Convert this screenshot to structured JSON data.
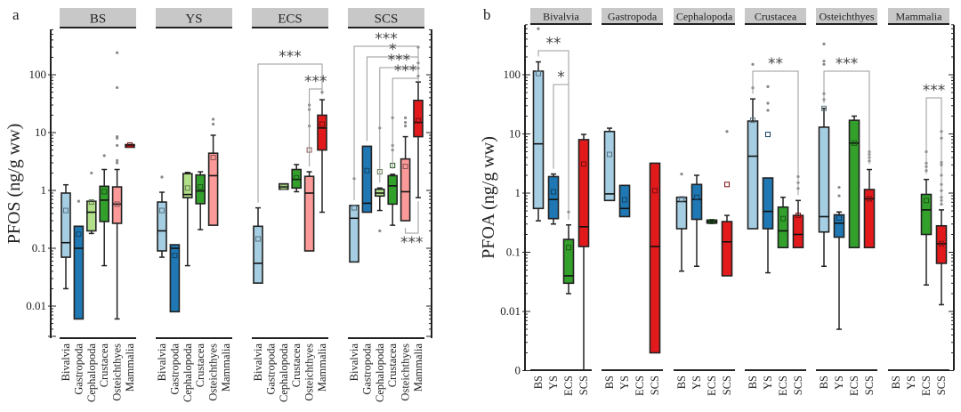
{
  "chart_data": [
    {
      "type": "box",
      "panel_label": "a",
      "ylabel": "PFOS (ng/g ww)",
      "yscale": "log",
      "ylim": [
        0.003,
        600
      ],
      "yticks": [
        {
          "value": 100,
          "label": "100"
        },
        {
          "value": 10,
          "label": "10"
        },
        {
          "value": 1,
          "label": "1"
        },
        {
          "value": 0.1,
          "label": "0.1"
        },
        {
          "value": 0.01,
          "label": "0.01"
        }
      ],
      "facets": [
        "BS",
        "YS",
        "ECS",
        "SCS"
      ],
      "categories": [
        "Bivalvia",
        "Gastropoda",
        "Cephalopoda",
        "Crustacea",
        "Osteichthyes",
        "Mammalia"
      ],
      "colors": {
        "Bivalvia": "#a6cee3",
        "Gastropoda": "#1f78b4",
        "Cephalopoda": "#b2df8a",
        "Crustacea": "#33a02c",
        "Osteichthyes": "#fb9a99",
        "Mammalia": "#e31a1c"
      },
      "groups": [
        {
          "facet": "BS",
          "category": "Bivalvia",
          "wlo": 0.02,
          "q1": 0.07,
          "median": 0.125,
          "q3": 0.9,
          "whi": 1.25,
          "mean": 0.45,
          "outliers": []
        },
        {
          "facet": "BS",
          "category": "Gastropoda",
          "wlo": 0.006,
          "q1": 0.006,
          "median": 0.1,
          "q3": 0.24,
          "whi": 0.24,
          "mean": 0.175,
          "outliers": [
            0.65
          ]
        },
        {
          "facet": "BS",
          "category": "Cephalopoda",
          "wlo": 0.18,
          "q1": 0.2,
          "median": 0.42,
          "q3": 0.65,
          "whi": 0.65,
          "mean": 0.63,
          "outliers": [
            2.0
          ]
        },
        {
          "facet": "BS",
          "category": "Crustacea",
          "wlo": 0.05,
          "q1": 0.29,
          "median": 0.68,
          "q3": 1.18,
          "whi": 2.3,
          "mean": 0.95,
          "outliers": [
            4.0
          ]
        },
        {
          "facet": "BS",
          "category": "Osteichthyes",
          "wlo": 0.006,
          "q1": 0.27,
          "median": 0.58,
          "q3": 1.15,
          "whi": 2.3,
          "mean": 0.58,
          "outliers": [
            3.0,
            3.3,
            6.0,
            8.0,
            8.5,
            60,
            240
          ]
        },
        {
          "facet": "BS",
          "category": "Mammalia",
          "wlo": 6.0,
          "q1": 6.0,
          "median": 6.1,
          "q3": 6.2,
          "whi": 6.2,
          "mean": 6.1,
          "outliers": []
        },
        {
          "facet": "YS",
          "category": "Bivalvia",
          "wlo": 0.07,
          "q1": 0.09,
          "median": 0.2,
          "q3": 0.63,
          "whi": 0.93,
          "mean": 0.45,
          "outliers": [
            1.7
          ]
        },
        {
          "facet": "YS",
          "category": "Gastropoda",
          "wlo": 0.008,
          "q1": 0.008,
          "median": 0.1,
          "q3": 0.115,
          "whi": 0.115,
          "mean": 0.075,
          "outliers": []
        },
        {
          "facet": "YS",
          "category": "Cephalopoda",
          "wlo": 0.05,
          "q1": 0.75,
          "median": 0.85,
          "q3": 1.95,
          "whi": 2.05,
          "mean": 1.1,
          "outliers": []
        },
        {
          "facet": "YS",
          "category": "Crustacea",
          "wlo": 0.21,
          "q1": 0.59,
          "median": 0.98,
          "q3": 1.85,
          "whi": 2.1,
          "mean": 1.15,
          "outliers": []
        },
        {
          "facet": "YS",
          "category": "Osteichthyes",
          "wlo": 0.25,
          "q1": 0.25,
          "median": 1.8,
          "q3": 4.4,
          "whi": 9.0,
          "mean": 3.7,
          "outliers": [
            14,
            17
          ]
        },
        {
          "facet": "ECS",
          "category": "Bivalvia",
          "wlo": 0.025,
          "q1": 0.025,
          "median": 0.055,
          "q3": 0.24,
          "whi": 0.5,
          "mean": 0.145,
          "outliers": []
        },
        {
          "facet": "ECS",
          "category": "Cephalopoda",
          "wlo": 1.05,
          "q1": 1.05,
          "median": 1.15,
          "q3": 1.3,
          "whi": 1.3,
          "mean": 1.15,
          "outliers": []
        },
        {
          "facet": "ECS",
          "category": "Crustacea",
          "wlo": 0.95,
          "q1": 1.1,
          "median": 1.55,
          "q3": 2.3,
          "whi": 2.8,
          "mean": 1.65,
          "outliers": []
        },
        {
          "facet": "ECS",
          "category": "Osteichthyes",
          "wlo": 0.09,
          "q1": 0.09,
          "median": 0.9,
          "q3": 1.75,
          "whi": 2.1,
          "mean": 5.0,
          "outliers": [
            13,
            25,
            30
          ]
        },
        {
          "facet": "ECS",
          "category": "Mammalia",
          "wlo": 0.42,
          "q1": 5.0,
          "median": 12,
          "q3": 20,
          "whi": 37,
          "mean": 14,
          "outliers": [
            50
          ]
        },
        {
          "facet": "SCS",
          "category": "Bivalvia",
          "wlo": 0.058,
          "q1": 0.058,
          "median": 0.33,
          "q3": 0.55,
          "whi": 0.55,
          "mean": 0.5,
          "outliers": [
            1.6
          ]
        },
        {
          "facet": "SCS",
          "category": "Gastropoda",
          "wlo": 0.42,
          "q1": 0.42,
          "median": 0.6,
          "q3": 5.8,
          "whi": 5.8,
          "mean": 2.2,
          "outliers": []
        },
        {
          "facet": "SCS",
          "category": "Cephalopoda",
          "wlo": 0.45,
          "q1": 0.8,
          "median": 0.9,
          "q3": 1.05,
          "whi": 1.1,
          "mean": 2.1,
          "outliers": [
            0.2,
            12
          ]
        },
        {
          "facet": "SCS",
          "category": "Crustacea",
          "wlo": 0.25,
          "q1": 0.58,
          "median": 1.2,
          "q3": 1.8,
          "whi": 1.9,
          "mean": 2.7,
          "outliers": [
            5,
            6,
            18
          ]
        },
        {
          "facet": "SCS",
          "category": "Osteichthyes",
          "wlo": 0.3,
          "q1": 0.3,
          "median": 0.95,
          "q3": 3.5,
          "whi": 8.5,
          "mean": 2.6,
          "outliers": [
            13,
            15,
            18
          ]
        },
        {
          "facet": "SCS",
          "category": "Mammalia",
          "wlo": 0.75,
          "q1": 8.5,
          "median": 15,
          "q3": 36,
          "whi": 75,
          "mean": 16,
          "outliers": [
            95,
            130,
            160,
            300
          ]
        }
      ],
      "significance": [
        {
          "facet": "ECS",
          "from": "Bivalvia",
          "to": "Mammalia",
          "label": "***",
          "level": 1
        },
        {
          "facet": "ECS",
          "from": "Osteichthyes",
          "to": "Mammalia",
          "label": "***",
          "level": 2
        },
        {
          "facet": "SCS",
          "from": "Bivalvia",
          "to": "Mammalia",
          "label": "***",
          "level": 1
        },
        {
          "facet": "SCS",
          "from": "Gastropoda",
          "to": "Mammalia",
          "label": "*",
          "level": 2
        },
        {
          "facet": "SCS",
          "from": "Cephalopoda",
          "to": "Mammalia",
          "label": "***",
          "level": 3
        },
        {
          "facet": "SCS",
          "from": "Crustacea",
          "to": "Mammalia",
          "label": "***",
          "level": 4
        },
        {
          "facet": "SCS",
          "from": "Osteichthyes",
          "to": "Mammalia",
          "label": "***",
          "level": "below"
        }
      ]
    },
    {
      "type": "box",
      "panel_label": "b",
      "ylabel": "PFOA (ng/g ww)",
      "yscale": "log",
      "ylim": [
        0.001,
        600
      ],
      "yticks": [
        {
          "value": 100,
          "label": "100"
        },
        {
          "value": 10,
          "label": "10"
        },
        {
          "value": 1,
          "label": "1"
        },
        {
          "value": 0.1,
          "label": "0.1"
        },
        {
          "value": 0.01,
          "label": "0.01"
        },
        {
          "value": 0.001,
          "label": "0"
        }
      ],
      "facets": [
        "Bivalvia",
        "Gastropoda",
        "Cephalopoda",
        "Crustacea",
        "Osteichthyes",
        "Mammalia"
      ],
      "categories": [
        "BS",
        "YS",
        "ECS",
        "SCS"
      ],
      "colors": {
        "BS": "#a6cee3",
        "YS": "#1f78b4",
        "ECS": "#33a02c",
        "SCS": "#e31a1c"
      },
      "groups": [
        {
          "facet": "Bivalvia",
          "category": "BS",
          "wlo": 0.34,
          "q1": 0.55,
          "median": 6.8,
          "q3": 115,
          "whi": 165,
          "mean": 105,
          "outliers": [
            600
          ]
        },
        {
          "facet": "Bivalvia",
          "category": "YS",
          "wlo": 0.3,
          "q1": 0.37,
          "median": 0.78,
          "q3": 1.9,
          "whi": 2.1,
          "mean": 1.05,
          "outliers": []
        },
        {
          "facet": "Bivalvia",
          "category": "ECS",
          "wlo": 0.02,
          "q1": 0.03,
          "median": 0.04,
          "q3": 0.165,
          "whi": 0.29,
          "mean": 0.12,
          "outliers": [
            0.48
          ]
        },
        {
          "facet": "Bivalvia",
          "category": "SCS",
          "wlo": 0.001,
          "q1": 0.125,
          "median": 0.27,
          "q3": 8.0,
          "whi": 9.8,
          "mean": 3.1,
          "outliers": []
        },
        {
          "facet": "Gastropoda",
          "category": "BS",
          "wlo": 0.75,
          "q1": 0.75,
          "median": 0.97,
          "q3": 11,
          "whi": 12.5,
          "mean": 4.5,
          "outliers": []
        },
        {
          "facet": "Gastropoda",
          "category": "YS",
          "wlo": 0.4,
          "q1": 0.4,
          "median": 0.55,
          "q3": 1.35,
          "whi": 1.35,
          "mean": 0.77,
          "outliers": []
        },
        {
          "facet": "Gastropoda",
          "category": "SCS",
          "wlo": 0.002,
          "q1": 0.002,
          "median": 0.125,
          "q3": 3.2,
          "whi": 3.2,
          "mean": 1.1,
          "outliers": []
        },
        {
          "facet": "Cephalopoda",
          "category": "BS",
          "wlo": 0.048,
          "q1": 0.25,
          "median": 0.72,
          "q3": 0.85,
          "whi": 0.85,
          "mean": 0.8,
          "outliers": [
            2.1
          ]
        },
        {
          "facet": "Cephalopoda",
          "category": "YS",
          "wlo": 0.058,
          "q1": 0.36,
          "median": 0.78,
          "q3": 1.4,
          "whi": 2.0,
          "mean": 0.85,
          "outliers": []
        },
        {
          "facet": "Cephalopoda",
          "category": "ECS",
          "wlo": 0.31,
          "q1": 0.31,
          "median": 0.33,
          "q3": 0.35,
          "whi": 0.35,
          "mean": 0.33,
          "outliers": []
        },
        {
          "facet": "Cephalopoda",
          "category": "SCS",
          "wlo": 0.04,
          "q1": 0.04,
          "median": 0.15,
          "q3": 0.33,
          "whi": 0.42,
          "mean": 1.4,
          "outliers": [
            11
          ]
        },
        {
          "facet": "Crustacea",
          "category": "BS",
          "wlo": 0.25,
          "q1": 0.25,
          "median": 4.2,
          "q3": 16.5,
          "whi": 39,
          "mean": 17,
          "outliers": [
            60,
            150
          ]
        },
        {
          "facet": "Crustacea",
          "category": "YS",
          "wlo": 0.045,
          "q1": 0.25,
          "median": 0.49,
          "q3": 1.8,
          "whi": 1.8,
          "mean": 9.8,
          "outliers": [
            25,
            33,
            63
          ]
        },
        {
          "facet": "Crustacea",
          "category": "ECS",
          "wlo": 0.12,
          "q1": 0.12,
          "median": 0.23,
          "q3": 0.58,
          "whi": 0.85,
          "mean": 0.37,
          "outliers": []
        },
        {
          "facet": "Crustacea",
          "category": "SCS",
          "wlo": 0.12,
          "q1": 0.12,
          "median": 0.2,
          "q3": 0.42,
          "whi": 0.75,
          "mean": 0.42,
          "outliers": [
            1.2,
            1.5,
            1.9
          ]
        },
        {
          "facet": "Osteichthyes",
          "category": "BS",
          "wlo": 0.058,
          "q1": 0.22,
          "median": 0.4,
          "q3": 13,
          "whi": 27,
          "mean": 27,
          "outliers": [
            38,
            48,
            150,
            170,
            330
          ]
        },
        {
          "facet": "Osteichthyes",
          "category": "YS",
          "wlo": 0.005,
          "q1": 0.18,
          "median": 0.31,
          "q3": 0.43,
          "whi": 0.48,
          "mean": 0.38,
          "outliers": [
            0.9,
            1.25
          ]
        },
        {
          "facet": "Osteichthyes",
          "category": "ECS",
          "wlo": 0.12,
          "q1": 0.12,
          "median": 7.0,
          "q3": 17,
          "whi": 20,
          "mean": 7.0,
          "outliers": []
        },
        {
          "facet": "Osteichthyes",
          "category": "SCS",
          "wlo": 0.12,
          "q1": 0.12,
          "median": 0.8,
          "q3": 1.15,
          "whi": 2.5,
          "mean": 0.8,
          "outliers": [
            3.5,
            4.0,
            4.5,
            5.0
          ]
        },
        {
          "facet": "Mammalia",
          "category": "ECS",
          "wlo": 0.028,
          "q1": 0.2,
          "median": 0.52,
          "q3": 0.95,
          "whi": 1.7,
          "mean": 0.75,
          "outliers": [
            2.4,
            2.8,
            3.2,
            5.0
          ]
        },
        {
          "facet": "Mammalia",
          "category": "SCS",
          "wlo": 0.013,
          "q1": 0.065,
          "median": 0.14,
          "q3": 0.28,
          "whi": 0.52,
          "mean": 0.14,
          "outliers": [
            0.65,
            0.75,
            0.85,
            1.1,
            1.4,
            2.0,
            3.0,
            3.3,
            8.5,
            11
          ]
        }
      ],
      "significance": [
        {
          "facet": "Bivalvia",
          "from": "BS",
          "to": "ECS",
          "label": "**",
          "level": 1
        },
        {
          "facet": "Bivalvia",
          "from": "YS",
          "to": "ECS",
          "label": "*",
          "level": 2
        },
        {
          "facet": "Crustacea",
          "from": "BS",
          "to": "SCS",
          "label": "**",
          "level": 1
        },
        {
          "facet": "Osteichthyes",
          "from": "BS",
          "to": "SCS",
          "label": "***",
          "level": 1
        },
        {
          "facet": "Mammalia",
          "from": "ECS",
          "to": "SCS",
          "label": "***",
          "level": 1
        }
      ]
    }
  ]
}
